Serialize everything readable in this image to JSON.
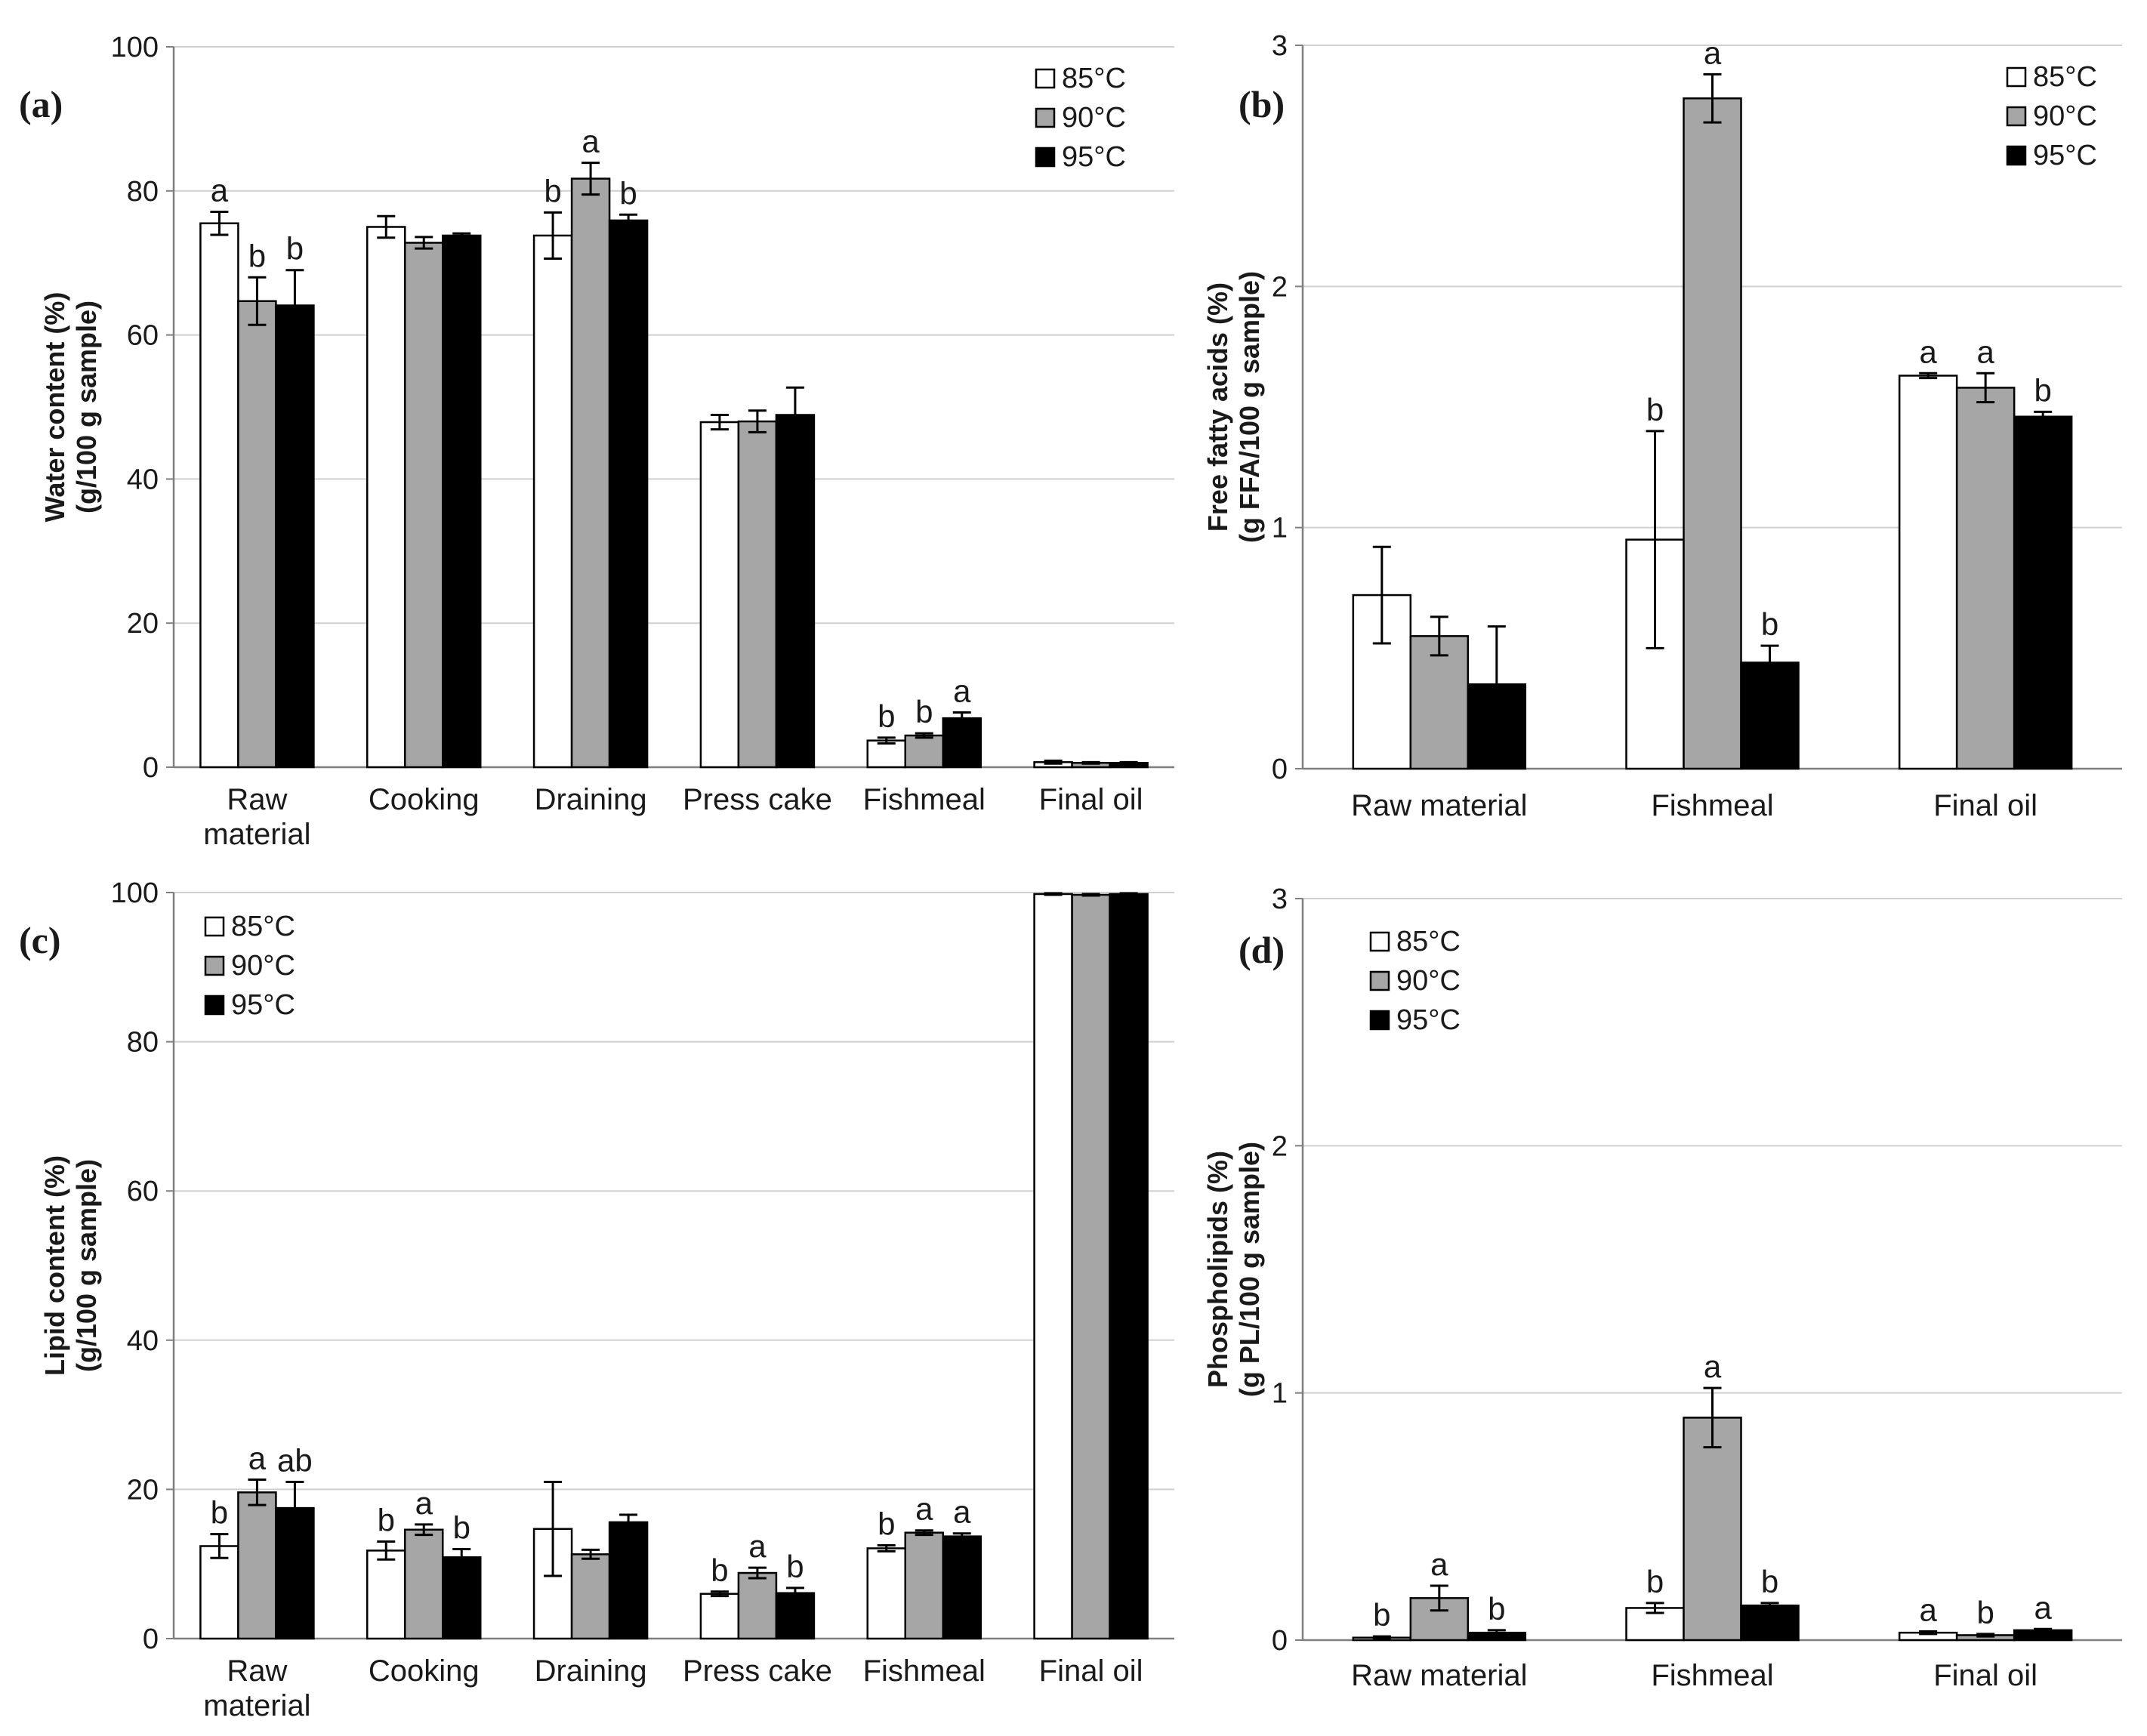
{
  "legend_labels": [
    "85°C",
    "90°C",
    "95°C"
  ],
  "colors": {
    "c85": "#ffffff",
    "c90": "#a6a6a6",
    "c95": "#000000",
    "grid": "#d0d0d0",
    "axis": "#7f7f7f"
  },
  "chart_data": [
    {
      "id": "a",
      "type": "bar",
      "panel_label": "(a)",
      "ylabel_line1": "Water content (%)",
      "ylabel_line2": "(g/100 g sample)",
      "ylim": [
        0,
        100
      ],
      "yticks": [
        0,
        20,
        40,
        60,
        80,
        100
      ],
      "legend_position": "top-right",
      "categories": [
        "Raw material",
        "Cooking",
        "Draining",
        "Press cake",
        "Fishmeal",
        "Final oil"
      ],
      "series": [
        {
          "name": "85°C",
          "values": [
            75.5,
            75.0,
            73.8,
            47.9,
            3.7,
            0.7
          ],
          "errors": [
            1.6,
            1.5,
            3.2,
            1.0,
            0.4,
            0.2
          ],
          "labels": [
            "a",
            "",
            "b",
            "",
            "b",
            ""
          ]
        },
        {
          "name": "90°C",
          "values": [
            64.7,
            72.8,
            81.7,
            48.0,
            4.4,
            0.6
          ],
          "errors": [
            3.3,
            0.8,
            2.2,
            1.5,
            0.3,
            0.1
          ],
          "labels": [
            "b",
            "",
            "a",
            "",
            "b",
            ""
          ]
        },
        {
          "name": "95°C",
          "values": [
            64.1,
            73.8,
            75.9,
            48.9,
            6.8,
            0.6
          ],
          "errors": [
            4.9,
            0.3,
            0.8,
            3.8,
            0.8,
            0.1
          ],
          "labels": [
            "b",
            "",
            "b",
            "",
            "a",
            ""
          ]
        }
      ]
    },
    {
      "id": "b",
      "type": "bar",
      "panel_label": "(b)",
      "ylabel_line1": "Free fatty acids (%)",
      "ylabel_line2": "(g FFA/100 g sample)",
      "ylim": [
        0,
        3
      ],
      "yticks": [
        0,
        1,
        2,
        3
      ],
      "legend_position": "top-right",
      "categories": [
        "Raw material",
        "Fishmeal",
        "Final oil"
      ],
      "series": [
        {
          "name": "85°C",
          "values": [
            0.72,
            0.95,
            1.63
          ],
          "errors": [
            0.2,
            0.45,
            0.01
          ],
          "labels": [
            "",
            "b",
            "a"
          ]
        },
        {
          "name": "90°C",
          "values": [
            0.55,
            2.78,
            1.58
          ],
          "errors": [
            0.08,
            0.1,
            0.06
          ],
          "labels": [
            "",
            "a",
            "a"
          ]
        },
        {
          "name": "95°C",
          "values": [
            0.35,
            0.44,
            1.46
          ],
          "errors": [
            0.24,
            0.07,
            0.02
          ],
          "labels": [
            "",
            "b",
            "b"
          ]
        }
      ]
    },
    {
      "id": "c",
      "type": "bar",
      "panel_label": "(c)",
      "ylabel_line1": "Lipid content (%)",
      "ylabel_line2": "(g/100 g sample)",
      "ylim": [
        0,
        100
      ],
      "yticks": [
        0,
        20,
        40,
        60,
        80,
        100
      ],
      "legend_position": "top-left",
      "categories": [
        "Raw material",
        "Cooking",
        "Draining",
        "Press cake",
        "Fishmeal",
        "Final oil"
      ],
      "series": [
        {
          "name": "85°C",
          "values": [
            12.4,
            11.8,
            14.7,
            6.0,
            12.1,
            99.8
          ],
          "errors": [
            1.6,
            1.2,
            6.3,
            0.3,
            0.4,
            0.1
          ],
          "labels": [
            "b",
            "b",
            "",
            "b",
            "b",
            ""
          ]
        },
        {
          "name": "90°C",
          "values": [
            19.6,
            14.6,
            11.3,
            8.8,
            14.2,
            99.7
          ],
          "errors": [
            1.7,
            0.7,
            0.6,
            0.7,
            0.3,
            0.1
          ],
          "labels": [
            "a",
            "a",
            "",
            "a",
            "a",
            ""
          ]
        },
        {
          "name": "95°C",
          "values": [
            17.5,
            10.9,
            15.6,
            6.1,
            13.7,
            99.8
          ],
          "errors": [
            3.5,
            1.1,
            1.0,
            0.7,
            0.4,
            0.1
          ],
          "labels": [
            "ab",
            "b",
            "",
            "b",
            "a",
            ""
          ]
        }
      ]
    },
    {
      "id": "d",
      "type": "bar",
      "panel_label": "(d)",
      "ylabel_line1": "Phospholipids (%)",
      "ylabel_line2": "(g PL/100 g sample)",
      "ylim": [
        0,
        3
      ],
      "yticks": [
        0,
        1,
        2,
        3
      ],
      "legend_position": "top-left",
      "categories": [
        "Raw material",
        "Fishmeal",
        "Final oil"
      ],
      "series": [
        {
          "name": "85°C",
          "values": [
            0.01,
            0.13,
            0.03
          ],
          "errors": [
            0.005,
            0.02,
            0.005
          ],
          "labels": [
            "b",
            "b",
            "a"
          ]
        },
        {
          "name": "90°C",
          "values": [
            0.17,
            0.9,
            0.02
          ],
          "errors": [
            0.05,
            0.12,
            0.005
          ],
          "labels": [
            "a",
            "a",
            "b"
          ]
        },
        {
          "name": "95°C",
          "values": [
            0.03,
            0.14,
            0.04
          ],
          "errors": [
            0.01,
            0.01,
            0.005
          ],
          "labels": [
            "b",
            "b",
            "a"
          ]
        }
      ]
    }
  ]
}
